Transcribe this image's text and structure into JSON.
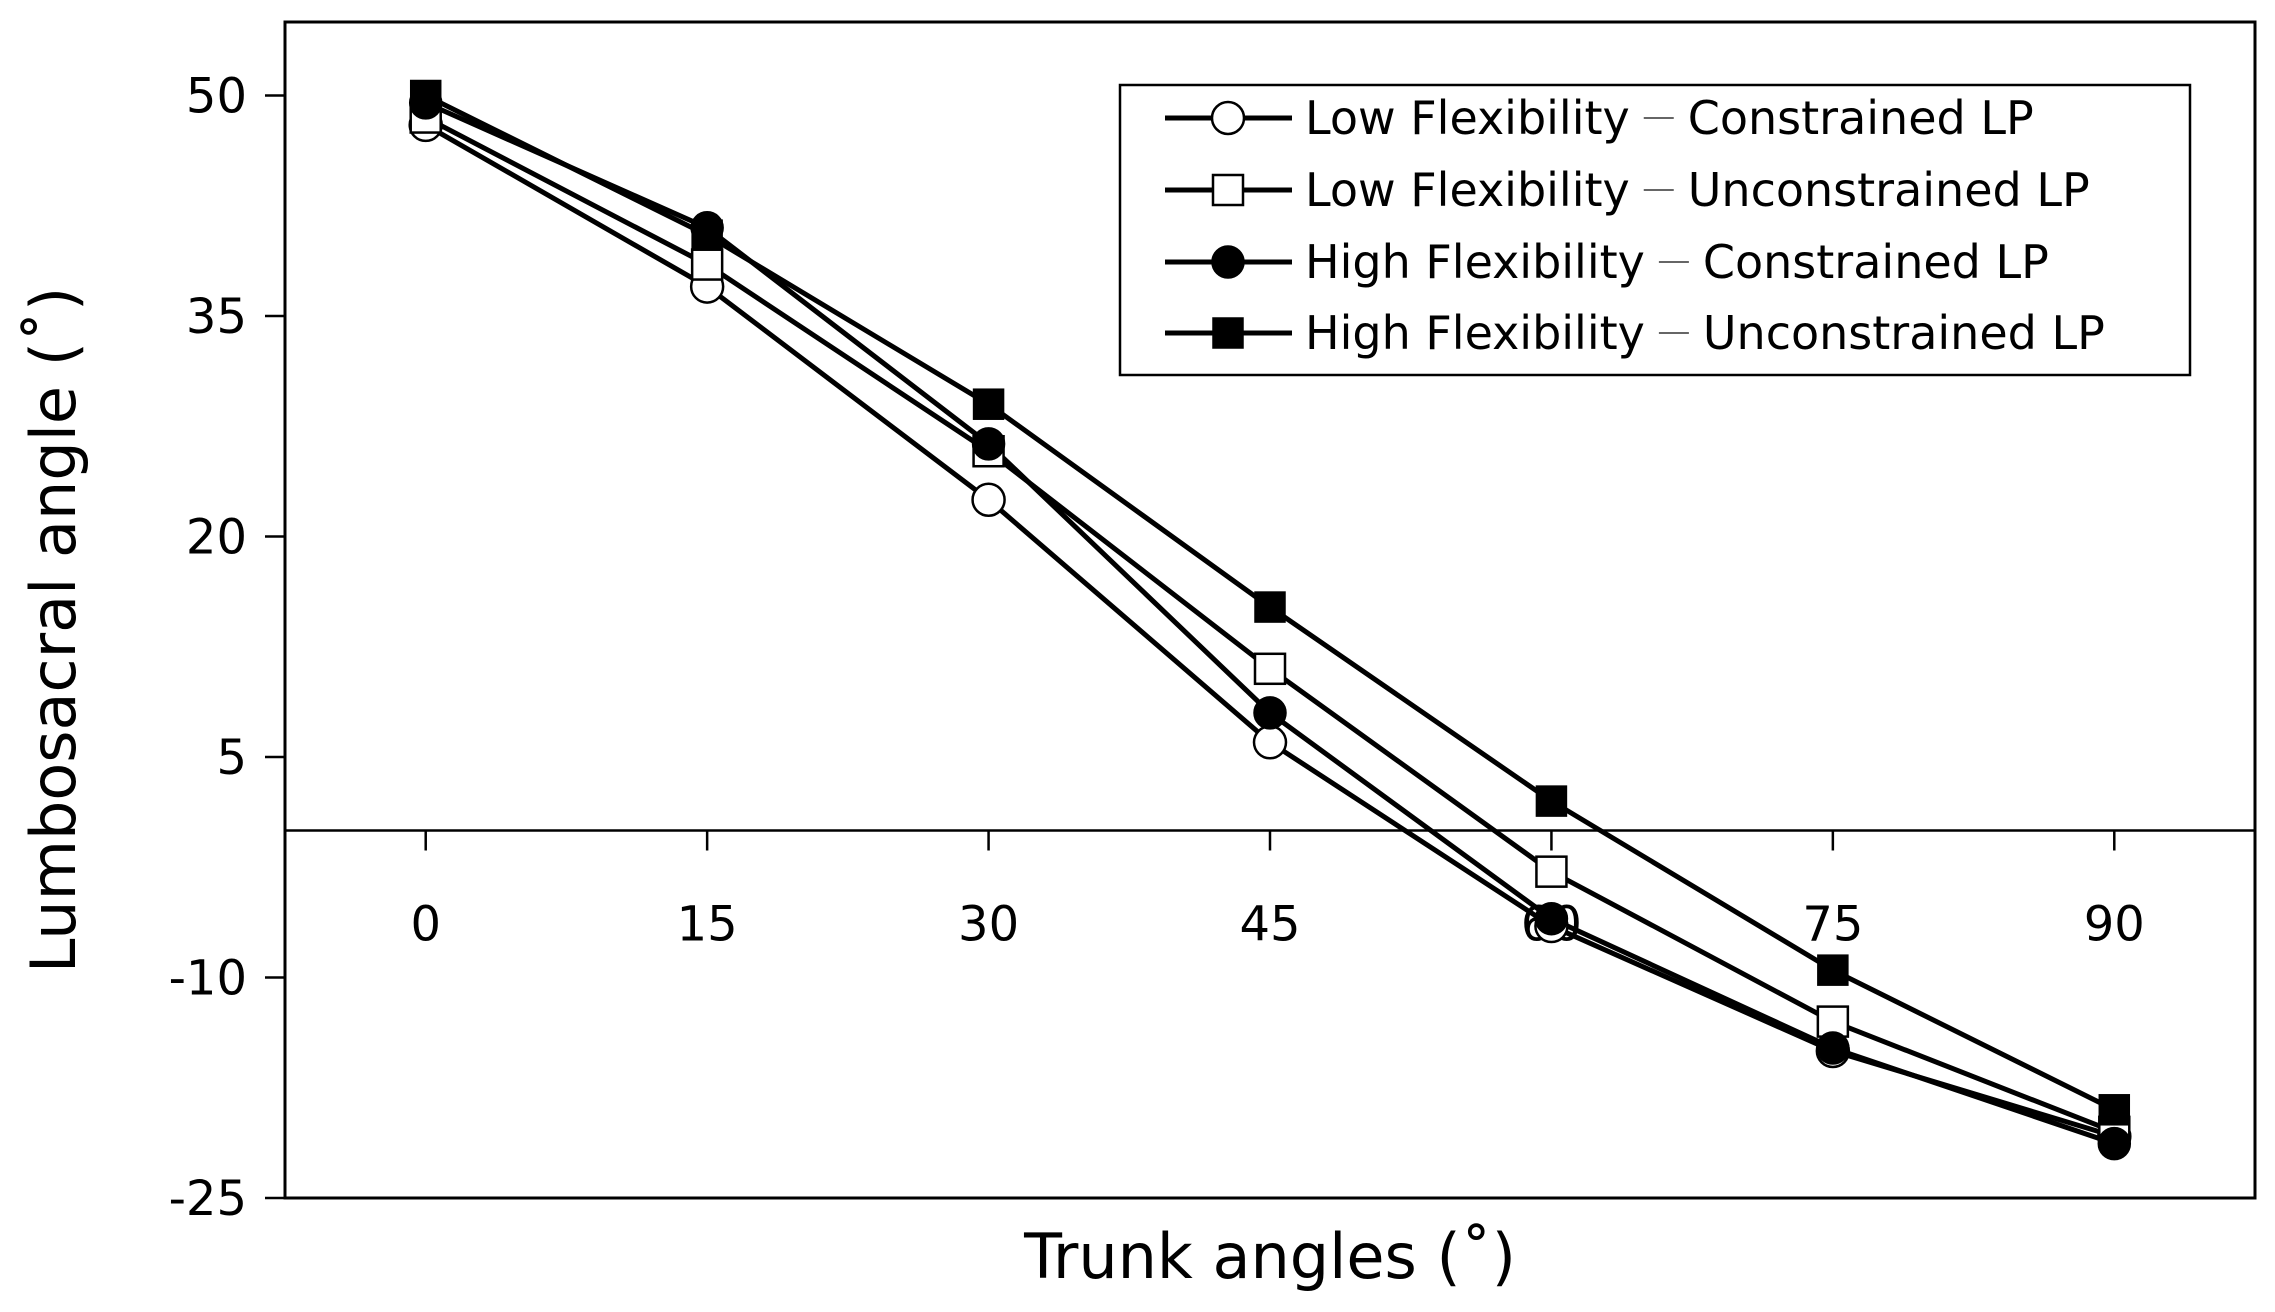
{
  "chart_data": {
    "type": "line",
    "title": "",
    "xlabel": "Trunk angles (˚)",
    "ylabel": "Lumbosacral angle (˚)",
    "x": [
      0,
      15,
      30,
      45,
      60,
      75,
      90
    ],
    "x_tick_labels": [
      "0",
      "15",
      "30",
      "45",
      "60",
      "75",
      "90"
    ],
    "y_ticks": [
      50,
      35,
      20,
      5,
      -10,
      -25
    ],
    "y_tick_labels": [
      "50",
      "35",
      "20",
      "5",
      "-10",
      "-25"
    ],
    "ylim": [
      -25,
      55
    ],
    "xlim": [
      -7.5,
      97.5
    ],
    "grid": false,
    "legend_position": "top-right",
    "series": [
      {
        "name_a": "Low Flexibility",
        "name_b": "Constrained LP",
        "marker": "circle-open",
        "values": [
          48.0,
          37.0,
          22.5,
          6.0,
          -6.5,
          -15.0,
          -20.8
        ]
      },
      {
        "name_a": "Low Flexibility",
        "name_b": "Unconstrained LP",
        "marker": "square-open",
        "values": [
          48.5,
          38.5,
          25.8,
          11.0,
          -2.8,
          -13.0,
          -20.5
        ]
      },
      {
        "name_a": "High Flexibility",
        "name_b": "Constrained LP",
        "marker": "circle-filled",
        "values": [
          49.5,
          41.0,
          26.3,
          8.0,
          -6.0,
          -14.8,
          -21.3
        ]
      },
      {
        "name_a": "High Flexibility",
        "name_b": "Unconstrained LP",
        "marker": "square-filled",
        "values": [
          50.0,
          40.5,
          29.0,
          15.2,
          2.0,
          -9.5,
          -19.0
        ]
      }
    ]
  }
}
